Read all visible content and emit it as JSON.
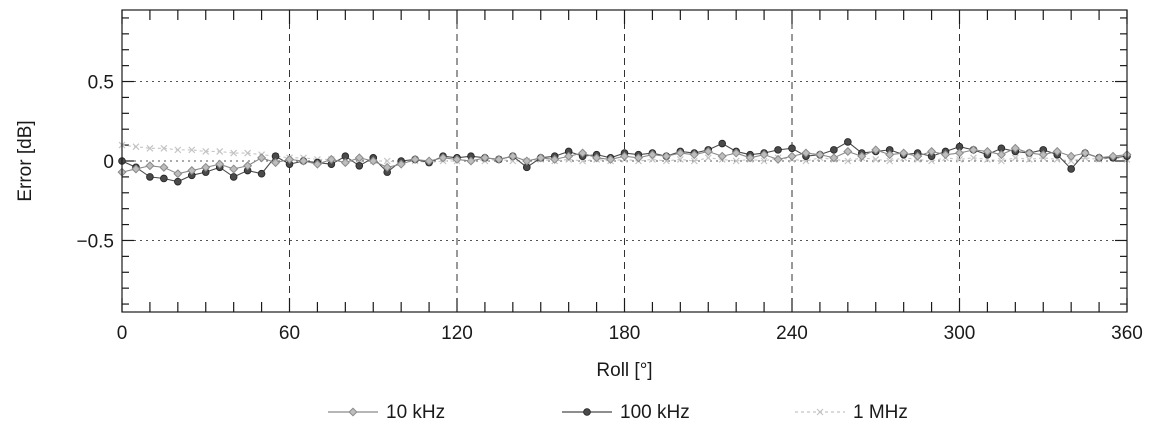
{
  "chart_data": {
    "type": "line",
    "title": "",
    "xlabel": "Roll [°]",
    "ylabel": "Error [dB]",
    "xlim": [
      0,
      360
    ],
    "ylim": [
      -0.95,
      0.95
    ],
    "xticks": [
      0,
      60,
      120,
      180,
      240,
      300,
      360
    ],
    "xtick_labels": [
      "0",
      "60",
      "120",
      "180",
      "240",
      "300",
      "360"
    ],
    "yticks": [
      0.5,
      0,
      -0.5
    ],
    "ytick_labels": [
      "0.5",
      "0",
      "−0.5"
    ],
    "grid": true,
    "legend_position": "bottom",
    "x": [
      0,
      5,
      10,
      15,
      20,
      25,
      30,
      35,
      40,
      45,
      50,
      55,
      60,
      65,
      70,
      75,
      80,
      85,
      90,
      95,
      100,
      105,
      110,
      115,
      120,
      125,
      130,
      135,
      140,
      145,
      150,
      155,
      160,
      165,
      170,
      175,
      180,
      185,
      190,
      195,
      200,
      205,
      210,
      215,
      220,
      225,
      230,
      235,
      240,
      245,
      250,
      255,
      260,
      265,
      270,
      275,
      280,
      285,
      290,
      295,
      300,
      305,
      310,
      315,
      320,
      325,
      330,
      335,
      340,
      345,
      350,
      355,
      360
    ],
    "series": [
      {
        "name": "10 kHz",
        "color": "#8a8a8a",
        "marker": "diamond",
        "values": [
          -0.07,
          -0.05,
          -0.03,
          -0.04,
          -0.08,
          -0.06,
          -0.04,
          -0.02,
          -0.05,
          -0.03,
          0.02,
          -0.01,
          0.01,
          0.0,
          -0.02,
          0.01,
          -0.01,
          0.02,
          0.0,
          -0.04,
          -0.02,
          0.01,
          0.0,
          0.02,
          0.01,
          0.0,
          0.02,
          0.01,
          0.03,
          0.0,
          0.02,
          0.01,
          0.03,
          0.05,
          0.02,
          0.01,
          0.03,
          0.02,
          0.04,
          0.03,
          0.05,
          0.04,
          0.06,
          0.03,
          0.05,
          0.02,
          0.04,
          0.01,
          0.03,
          0.05,
          0.04,
          0.02,
          0.06,
          0.03,
          0.07,
          0.04,
          0.05,
          0.03,
          0.06,
          0.04,
          0.05,
          0.07,
          0.06,
          0.04,
          0.08,
          0.05,
          0.04,
          0.06,
          0.03,
          0.05,
          0.02,
          0.03,
          0.04
        ]
      },
      {
        "name": "100 kHz",
        "color": "#4a4a4a",
        "marker": "circle",
        "values": [
          0.0,
          -0.04,
          -0.1,
          -0.11,
          -0.13,
          -0.09,
          -0.07,
          -0.04,
          -0.1,
          -0.06,
          -0.08,
          0.03,
          -0.02,
          0.0,
          -0.01,
          -0.02,
          0.03,
          -0.03,
          0.02,
          -0.07,
          0.0,
          0.01,
          -0.01,
          0.03,
          0.02,
          0.03,
          0.02,
          0.01,
          0.03,
          -0.04,
          0.02,
          0.03,
          0.06,
          0.03,
          0.04,
          0.02,
          0.05,
          0.04,
          0.05,
          0.03,
          0.06,
          0.05,
          0.07,
          0.11,
          0.06,
          0.04,
          0.05,
          0.07,
          0.08,
          0.03,
          0.04,
          0.07,
          0.12,
          0.05,
          0.06,
          0.07,
          0.04,
          0.05,
          0.03,
          0.06,
          0.09,
          0.07,
          0.04,
          0.08,
          0.06,
          0.05,
          0.07,
          0.04,
          -0.05,
          0.05,
          0.02,
          0.02,
          0.03
        ]
      },
      {
        "name": "1 MHz",
        "color": "#c4c4c4",
        "marker": "cross",
        "values": [
          0.1,
          0.09,
          0.08,
          0.08,
          0.07,
          0.07,
          0.06,
          0.06,
          0.05,
          0.05,
          0.04,
          0.03,
          0.02,
          0.02,
          0.01,
          0.01,
          0.0,
          0.01,
          0.0,
          0.0,
          -0.01,
          0.0,
          -0.01,
          0.0,
          0.0,
          0.01,
          0.0,
          0.01,
          0.0,
          0.0,
          0.01,
          0.0,
          0.01,
          0.0,
          0.01,
          0.0,
          0.01,
          0.0,
          0.01,
          0.0,
          0.01,
          0.0,
          0.02,
          0.01,
          0.0,
          0.01,
          0.0,
          0.02,
          0.01,
          0.0,
          0.02,
          0.01,
          0.0,
          0.02,
          0.01,
          0.0,
          0.02,
          0.01,
          0.0,
          0.02,
          0.01,
          0.02,
          0.01,
          0.0,
          0.02,
          0.01,
          0.02,
          0.01,
          0.0,
          0.02,
          0.01,
          0.02,
          0.01
        ]
      }
    ]
  }
}
